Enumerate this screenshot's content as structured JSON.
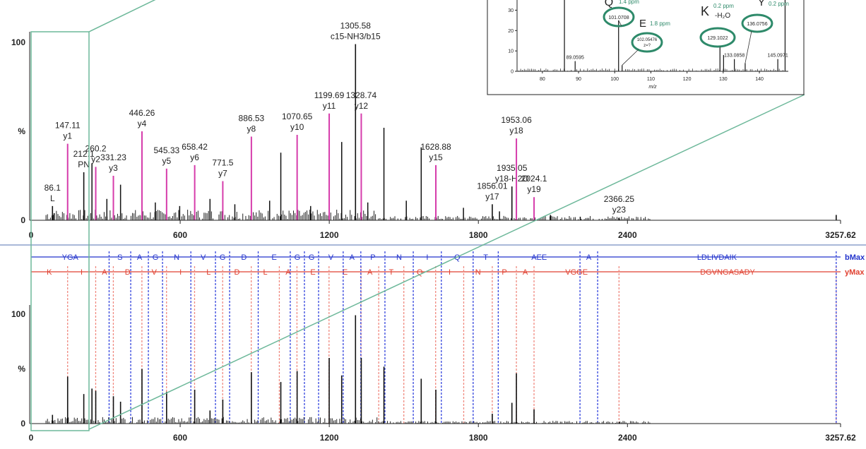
{
  "chart_data": [
    {
      "type": "bar",
      "title": "",
      "xlabel": "",
      "ylabel": "%",
      "xlim": [
        0,
        3257.62
      ],
      "ylim": [
        0,
        100
      ],
      "x_ticks": [
        "0",
        "600",
        "1200",
        "1800",
        "2400",
        "3257.62"
      ],
      "x_tick_values": [
        0,
        600,
        1200,
        1800,
        2400,
        3257.62
      ],
      "y_ticks": [
        "0",
        "%",
        "100"
      ],
      "y_tick_values": [
        0,
        50,
        100
      ],
      "highlight_color": "#d63cab",
      "bar_color": "#111111",
      "peaks": [
        {
          "mz": 86.1,
          "intensity": 8,
          "label": [
            "86.1",
            "L"
          ],
          "hl": false
        },
        {
          "mz": 147.11,
          "intensity": 43,
          "label": [
            "147.11",
            "y1"
          ],
          "hl": true
        },
        {
          "mz": 212.1,
          "intensity": 27,
          "label": [
            "212.1",
            "PN"
          ],
          "hl": false
        },
        {
          "mz": 260.2,
          "intensity": 30,
          "label": [
            "260.2",
            "y2"
          ],
          "hl": true
        },
        {
          "mz": 331.23,
          "intensity": 25,
          "label": [
            "331.23",
            "y3"
          ],
          "hl": true
        },
        {
          "mz": 446.26,
          "intensity": 50,
          "label": [
            "446.26",
            "y4"
          ],
          "hl": true
        },
        {
          "mz": 545.33,
          "intensity": 29,
          "label": [
            "545.33",
            "y5"
          ],
          "hl": true
        },
        {
          "mz": 658.42,
          "intensity": 31,
          "label": [
            "658.42",
            "y6"
          ],
          "hl": true
        },
        {
          "mz": 771.5,
          "intensity": 22,
          "label": [
            "771.5",
            "y7"
          ],
          "hl": true
        },
        {
          "mz": 886.53,
          "intensity": 47,
          "label": [
            "886.53",
            "y8"
          ],
          "hl": true
        },
        {
          "mz": 1070.65,
          "intensity": 48,
          "label": [
            "1070.65",
            "y10"
          ],
          "hl": true
        },
        {
          "mz": 1199.69,
          "intensity": 60,
          "label": [
            "1199.69",
            "y11"
          ],
          "hl": true
        },
        {
          "mz": 1305.58,
          "intensity": 99,
          "label": [
            "1305.58",
            "c15-NH3/b15"
          ],
          "hl": false
        },
        {
          "mz": 1328.74,
          "intensity": 60,
          "label": [
            "1328.74",
            "y12"
          ],
          "hl": true
        },
        {
          "mz": 1628.88,
          "intensity": 31,
          "label": [
            "1628.88",
            "y15"
          ],
          "hl": true
        },
        {
          "mz": 1856.01,
          "intensity": 9,
          "label": [
            "1856.01",
            "y17"
          ],
          "hl": false
        },
        {
          "mz": 1935.05,
          "intensity": 19,
          "label": [
            "1935.05",
            "y18-H2O"
          ],
          "hl": false
        },
        {
          "mz": 1953.06,
          "intensity": 46,
          "label": [
            "1953.06",
            "y18"
          ],
          "hl": true
        },
        {
          "mz": 2024.1,
          "intensity": 13,
          "label": [
            "2024.1",
            "y19"
          ],
          "hl": true
        },
        {
          "mz": 2366.25,
          "intensity": 1.5,
          "label": [
            "2366.25",
            "y23"
          ],
          "hl": false
        },
        {
          "mz": 3240,
          "intensity": 3,
          "label": null,
          "hl": false
        }
      ],
      "extra_peaks": [
        {
          "mz": 93,
          "intensity": 4
        },
        {
          "mz": 245,
          "intensity": 32
        },
        {
          "mz": 305,
          "intensity": 12
        },
        {
          "mz": 360,
          "intensity": 20
        },
        {
          "mz": 500,
          "intensity": 10
        },
        {
          "mz": 598,
          "intensity": 8
        },
        {
          "mz": 720,
          "intensity": 12
        },
        {
          "mz": 820,
          "intensity": 9
        },
        {
          "mz": 960,
          "intensity": 11
        },
        {
          "mz": 1005,
          "intensity": 38
        },
        {
          "mz": 1125,
          "intensity": 8
        },
        {
          "mz": 1250,
          "intensity": 44
        },
        {
          "mz": 1355,
          "intensity": 10
        },
        {
          "mz": 1420,
          "intensity": 52
        },
        {
          "mz": 1510,
          "intensity": 11
        },
        {
          "mz": 1570,
          "intensity": 41
        },
        {
          "mz": 1740,
          "intensity": 7
        },
        {
          "mz": 1885,
          "intensity": 5
        },
        {
          "mz": 2090,
          "intensity": 3
        },
        {
          "mz": 2210,
          "intensity": 2
        }
      ]
    },
    {
      "type": "bar",
      "title": "",
      "xlabel": "",
      "ylabel": "%",
      "xlim": [
        0,
        3257.62
      ],
      "ylim": [
        0,
        100
      ],
      "x_ticks": [
        "0",
        "600",
        "1200",
        "1800",
        "2400",
        "3257.62"
      ],
      "x_tick_values": [
        0,
        600,
        1200,
        1800,
        2400,
        3257.62
      ],
      "y_ticks": [
        "0",
        "%",
        "100"
      ],
      "y_tick_values": [
        0,
        50,
        100
      ],
      "b_ladder": {
        "label": "bMax",
        "color": "#2233cc",
        "residues": [
          {
            "text": "YGA",
            "from": 0,
            "to": 314
          },
          {
            "text": "S",
            "from": 314,
            "to": 401
          },
          {
            "text": "A",
            "from": 401,
            "to": 472
          },
          {
            "text": "G",
            "from": 472,
            "to": 529
          },
          {
            "text": "N",
            "from": 529,
            "to": 643
          },
          {
            "text": "V",
            "from": 643,
            "to": 742
          },
          {
            "text": "G",
            "from": 742,
            "to": 799
          },
          {
            "text": "D",
            "from": 799,
            "to": 914
          },
          {
            "text": "E",
            "from": 914,
            "to": 1043
          },
          {
            "text": "G",
            "from": 1043,
            "to": 1100
          },
          {
            "text": "G",
            "from": 1100,
            "to": 1157
          },
          {
            "text": "V",
            "from": 1157,
            "to": 1256
          },
          {
            "text": "A",
            "from": 1256,
            "to": 1327
          },
          {
            "text": "P",
            "from": 1327,
            "to": 1424
          },
          {
            "text": "N",
            "from": 1424,
            "to": 1538
          },
          {
            "text": "I",
            "from": 1538,
            "to": 1651
          },
          {
            "text": "Q",
            "from": 1651,
            "to": 1779
          },
          {
            "text": "T",
            "from": 1779,
            "to": 1880
          },
          {
            "text": "AEE",
            "from": 1880,
            "to": 2209
          },
          {
            "text": "A",
            "from": 2209,
            "to": 2280
          },
          {
            "text": "LDLIVDAIK",
            "from": 2280,
            "to": 3240
          }
        ]
      },
      "y_ladder": {
        "label": "yMax",
        "color": "#e04030",
        "residues": [
          {
            "text": "K",
            "from": 0,
            "to": 147
          },
          {
            "text": "I",
            "from": 147,
            "to": 260
          },
          {
            "text": "A",
            "from": 260,
            "to": 331
          },
          {
            "text": "D",
            "from": 331,
            "to": 446
          },
          {
            "text": "V",
            "from": 446,
            "to": 545
          },
          {
            "text": "I",
            "from": 545,
            "to": 658
          },
          {
            "text": "L",
            "from": 658,
            "to": 771
          },
          {
            "text": "D",
            "from": 771,
            "to": 886
          },
          {
            "text": "L",
            "from": 886,
            "to": 999
          },
          {
            "text": "A",
            "from": 999,
            "to": 1070
          },
          {
            "text": "E",
            "from": 1070,
            "to": 1199
          },
          {
            "text": "E",
            "from": 1199,
            "to": 1328
          },
          {
            "text": "A",
            "from": 1328,
            "to": 1399
          },
          {
            "text": "T",
            "from": 1399,
            "to": 1500
          },
          {
            "text": "Q",
            "from": 1500,
            "to": 1628
          },
          {
            "text": "I",
            "from": 1628,
            "to": 1741
          },
          {
            "text": "N",
            "from": 1741,
            "to": 1856
          },
          {
            "text": "P",
            "from": 1856,
            "to": 1953
          },
          {
            "text": "A",
            "from": 1953,
            "to": 2024
          },
          {
            "text": "VGGE",
            "from": 2024,
            "to": 2366
          },
          {
            "text": "DGVNGASADY",
            "from": 2366,
            "to": 3240
          }
        ]
      },
      "peaks": [
        {
          "mz": 86.1,
          "intensity": 8
        },
        {
          "mz": 147.11,
          "intensity": 43
        },
        {
          "mz": 212.1,
          "intensity": 27
        },
        {
          "mz": 260.2,
          "intensity": 30
        },
        {
          "mz": 331.23,
          "intensity": 25
        },
        {
          "mz": 446.26,
          "intensity": 50
        },
        {
          "mz": 545.33,
          "intensity": 29
        },
        {
          "mz": 658.42,
          "intensity": 31
        },
        {
          "mz": 771.5,
          "intensity": 22
        },
        {
          "mz": 886.53,
          "intensity": 47
        },
        {
          "mz": 1005,
          "intensity": 38
        },
        {
          "mz": 1070.65,
          "intensity": 48
        },
        {
          "mz": 1199.69,
          "intensity": 60
        },
        {
          "mz": 1250,
          "intensity": 44
        },
        {
          "mz": 1305.58,
          "intensity": 99
        },
        {
          "mz": 1328.74,
          "intensity": 60
        },
        {
          "mz": 1420,
          "intensity": 52
        },
        {
          "mz": 1570,
          "intensity": 41
        },
        {
          "mz": 1628.88,
          "intensity": 31
        },
        {
          "mz": 1856.01,
          "intensity": 9
        },
        {
          "mz": 1935.05,
          "intensity": 19
        },
        {
          "mz": 1953.06,
          "intensity": 46
        },
        {
          "mz": 2024.1,
          "intensity": 13
        },
        {
          "mz": 2366.25,
          "intensity": 1.5
        },
        {
          "mz": 245,
          "intensity": 32
        },
        {
          "mz": 360,
          "intensity": 20
        },
        {
          "mz": 720,
          "intensity": 12
        }
      ]
    },
    {
      "type": "bar",
      "title": "",
      "xlabel": "m/z",
      "ylabel": "",
      "xlim": [
        73,
        148
      ],
      "ylim": [
        0,
        35
      ],
      "x_ticks": [
        "80",
        "90",
        "100",
        "110",
        "120",
        "130",
        "140"
      ],
      "x_tick_values": [
        80,
        90,
        100,
        110,
        120,
        130,
        140
      ],
      "y_ticks": [
        "0",
        "10",
        "20",
        "30"
      ],
      "y_tick_values": [
        0,
        10,
        20,
        30
      ],
      "peaks": [
        {
          "mz": 86.1,
          "intensity": 40
        },
        {
          "mz": 89.0595,
          "intensity": 5,
          "label": "89.0595"
        },
        {
          "mz": 101.0708,
          "intensity": 25
        },
        {
          "mz": 102.05476,
          "intensity": 3
        },
        {
          "mz": 129.1022,
          "intensity": 12
        },
        {
          "mz": 130.1,
          "intensity": 8
        },
        {
          "mz": 133.0858,
          "intensity": 6,
          "label": "133.0858"
        },
        {
          "mz": 136.0756,
          "intensity": 4
        },
        {
          "mz": 145.0971,
          "intensity": 6,
          "label": "145.0971"
        },
        {
          "mz": 147.11,
          "intensity": 40
        }
      ],
      "annotations": [
        {
          "residue": "Q",
          "ppm": "1.4 ppm",
          "circle": [
            "101.0708"
          ],
          "mz": 101.0708
        },
        {
          "residue": "E",
          "ppm": "1.8 ppm",
          "circle": [
            "102.05476",
            "z=?"
          ],
          "mz": 102.05476
        },
        {
          "residue": "K",
          "sub": "-H₂O",
          "ppm": "0.2 ppm",
          "circle": [
            "129.1022"
          ],
          "mz": 129.1022
        },
        {
          "residue": "Y",
          "ppm": "0.2 ppm",
          "circle": [
            "136.0756"
          ],
          "mz": 136.0756
        }
      ],
      "annotation_color": "#2e8a6a"
    }
  ]
}
